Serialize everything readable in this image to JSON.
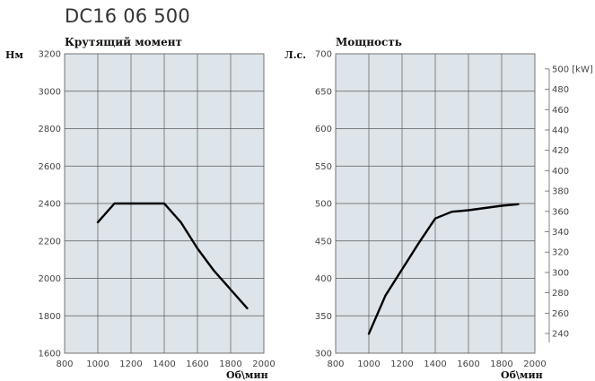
{
  "page_title": "DC16 06 500",
  "chart_data": [
    {
      "type": "line",
      "title": "Крутящий момент",
      "ylabel": "Нм",
      "xlabel": "Об\\мин",
      "xlim": [
        800,
        2000
      ],
      "ylim": [
        1600,
        3200
      ],
      "x_ticks": [
        "800",
        "1000",
        "1200",
        "1400",
        "1600",
        "1800",
        "2000"
      ],
      "y_ticks": [
        "1600",
        "1800",
        "2000",
        "2200",
        "2400",
        "2600",
        "2800",
        "3000",
        "3200"
      ],
      "grid": true,
      "series": [
        {
          "x": [
            1000,
            1100,
            1200,
            1300,
            1400,
            1500,
            1600,
            1700,
            1800,
            1900
          ],
          "values": [
            2300,
            2400,
            2400,
            2400,
            2400,
            2300,
            2160,
            2040,
            1940,
            1840
          ]
        }
      ]
    },
    {
      "type": "line",
      "title": "Мощность",
      "ylabel": "Л.с.",
      "xlabel": "Об\\мин",
      "xlim": [
        800,
        2000
      ],
      "ylim": [
        300,
        700
      ],
      "x_ticks": [
        "800",
        "1000",
        "1200",
        "1400",
        "1600",
        "1800",
        "2000"
      ],
      "y_ticks": [
        "300",
        "350",
        "400",
        "450",
        "500",
        "550",
        "600",
        "650",
        "700"
      ],
      "secondary_y_ticks": [
        "240",
        "260",
        "280",
        "300",
        "320",
        "340",
        "360",
        "380",
        "400",
        "420",
        "440",
        "460",
        "480",
        "500 [kW]"
      ],
      "secondary_ylim_kw": [
        220.65,
        514.85
      ],
      "grid": true,
      "series": [
        {
          "x": [
            1000,
            1100,
            1200,
            1300,
            1400,
            1500,
            1600,
            1700,
            1800,
            1900
          ],
          "values": [
            326,
            377,
            412,
            447,
            480,
            489,
            491,
            494,
            497,
            499
          ]
        }
      ]
    }
  ]
}
